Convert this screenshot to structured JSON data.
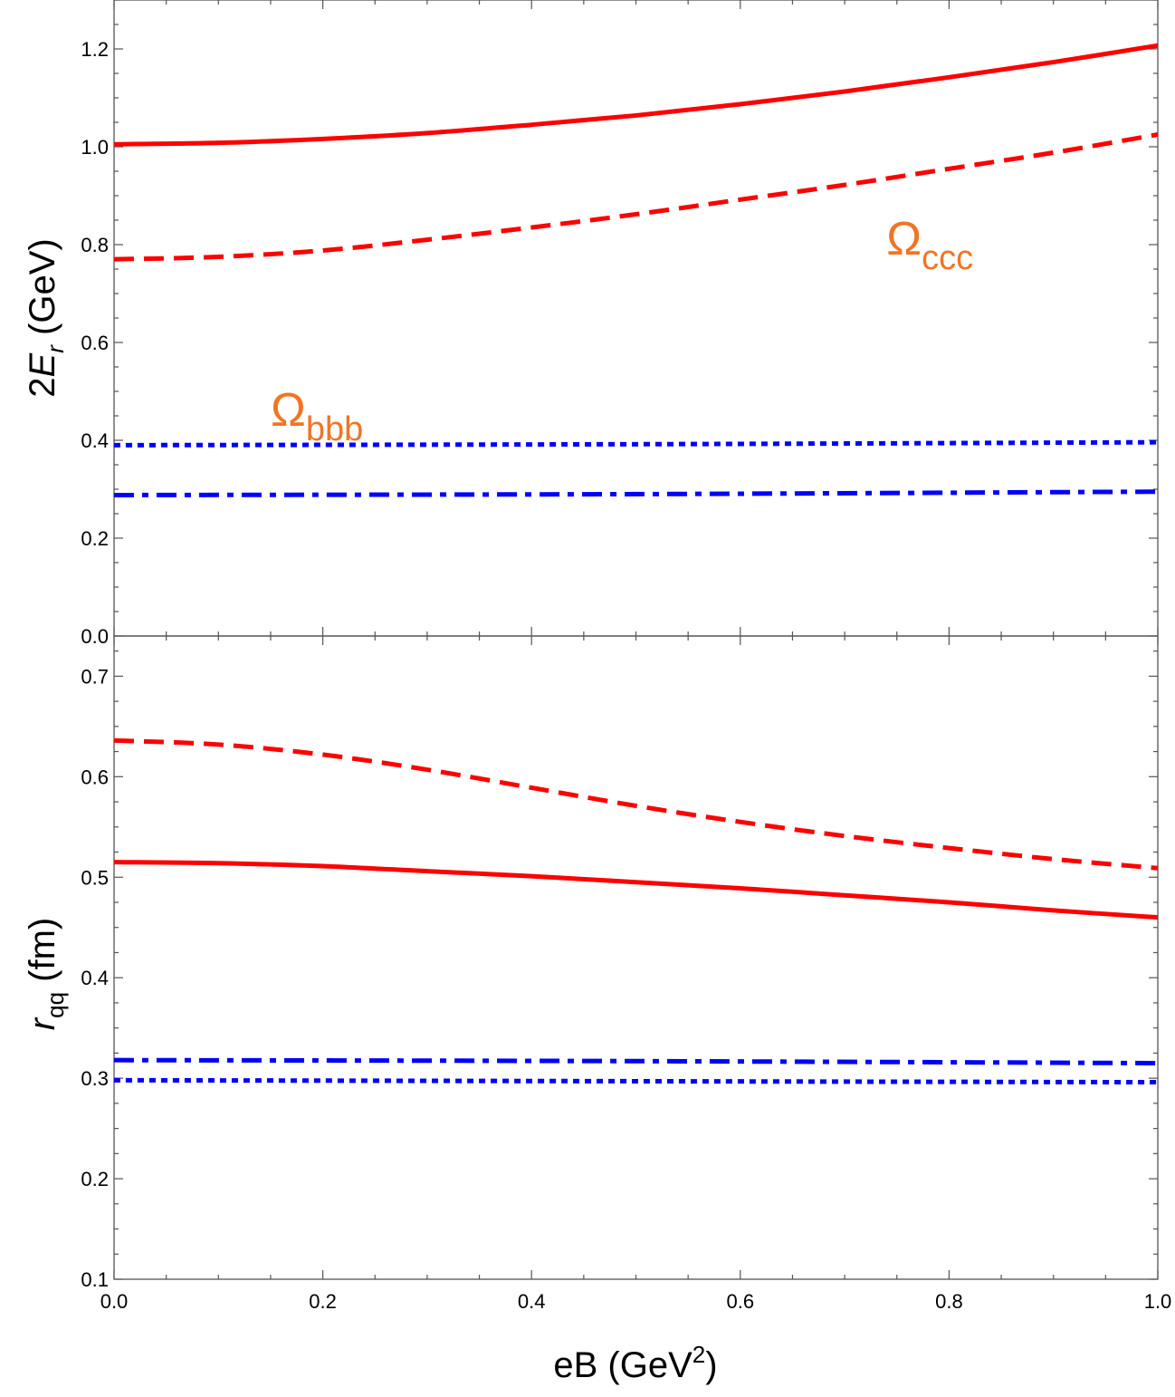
{
  "colors": {
    "red": "#ff0000",
    "blue": "#0000ff",
    "annotation": "#f07525",
    "frame": "#555555"
  },
  "chart_data": [
    {
      "type": "line",
      "ylabel_main": "2",
      "ylabel_var": "E",
      "ylabel_sub": "r",
      "ylabel_unit": " (GeV)",
      "xlim": [
        0,
        1
      ],
      "ylim": [
        0,
        1.3
      ],
      "y_ticks": [
        "0.0",
        "0.2",
        "0.4",
        "0.6",
        "0.8",
        "1.0",
        "1.2"
      ],
      "annotations": [
        {
          "main": "Ω",
          "sub": "ccc",
          "x": 0.74,
          "y": 0.78
        },
        {
          "main": "Ω",
          "sub": "bbb",
          "x": 0.15,
          "y": 0.43
        }
      ],
      "series": [
        {
          "style": "solid",
          "color": "#ff0000",
          "x": [
            0,
            0.1,
            0.2,
            0.3,
            0.4,
            0.5,
            0.6,
            0.7,
            0.8,
            0.9,
            1.0
          ],
          "values": [
            1.005,
            1.008,
            1.016,
            1.028,
            1.045,
            1.064,
            1.087,
            1.113,
            1.142,
            1.173,
            1.207
          ]
        },
        {
          "style": "dashed",
          "color": "#ff0000",
          "x": [
            0,
            0.1,
            0.2,
            0.3,
            0.4,
            0.5,
            0.6,
            0.7,
            0.8,
            0.9,
            1.0
          ],
          "values": [
            0.77,
            0.775,
            0.788,
            0.81,
            0.835,
            0.862,
            0.892,
            0.922,
            0.955,
            0.988,
            1.025
          ]
        },
        {
          "style": "dotted",
          "color": "#0000ff",
          "x": [
            0,
            0.5,
            1.0
          ],
          "values": [
            0.39,
            0.392,
            0.396
          ]
        },
        {
          "style": "dashdot",
          "color": "#0000ff",
          "x": [
            0,
            0.5,
            1.0
          ],
          "values": [
            0.288,
            0.29,
            0.295
          ]
        }
      ]
    },
    {
      "type": "line",
      "ylabel_var": "r",
      "ylabel_sub": "qq",
      "ylabel_unit": " (fm)",
      "xlabel_main": "eB (GeV",
      "xlabel_sup": "2",
      "xlabel_end": ")",
      "xlim": [
        0,
        1
      ],
      "ylim": [
        0.1,
        0.74
      ],
      "x_ticks": [
        "0.0",
        "0.2",
        "0.4",
        "0.6",
        "0.8",
        "1.0"
      ],
      "y_ticks": [
        "0.1",
        "0.2",
        "0.3",
        "0.4",
        "0.5",
        "0.6",
        "0.7"
      ],
      "series": [
        {
          "style": "dashed",
          "color": "#ff0000",
          "x": [
            0,
            0.1,
            0.2,
            0.3,
            0.4,
            0.5,
            0.6,
            0.7,
            0.8,
            0.9,
            1.0
          ],
          "values": [
            0.636,
            0.632,
            0.622,
            0.607,
            0.589,
            0.571,
            0.555,
            0.541,
            0.529,
            0.518,
            0.509
          ]
        },
        {
          "style": "solid",
          "color": "#ff0000",
          "x": [
            0,
            0.1,
            0.2,
            0.3,
            0.4,
            0.5,
            0.6,
            0.7,
            0.8,
            0.9,
            1.0
          ],
          "values": [
            0.515,
            0.514,
            0.511,
            0.506,
            0.501,
            0.495,
            0.489,
            0.482,
            0.475,
            0.467,
            0.46
          ]
        },
        {
          "style": "dashdot",
          "color": "#0000ff",
          "x": [
            0,
            0.5,
            1.0
          ],
          "values": [
            0.318,
            0.317,
            0.315
          ]
        },
        {
          "style": "dotted",
          "color": "#0000ff",
          "x": [
            0,
            0.5,
            1.0
          ],
          "values": [
            0.298,
            0.297,
            0.296
          ]
        }
      ]
    }
  ]
}
